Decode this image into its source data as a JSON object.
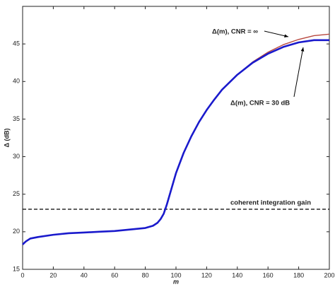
{
  "chart_data": {
    "type": "line",
    "x_label": "m",
    "y_label": "Δ (dB)",
    "x": [
      0,
      2,
      5,
      10,
      20,
      30,
      40,
      50,
      60,
      70,
      80,
      85,
      88,
      90,
      92,
      94,
      96,
      98,
      100,
      105,
      110,
      115,
      120,
      125,
      130,
      140,
      150,
      160,
      170,
      180,
      190,
      200
    ],
    "series": [
      {
        "name": "Δ(m), CNR = ∞",
        "color": "#b8483f",
        "width": 1.4,
        "values": [
          18.3,
          18.7,
          19.1,
          19.3,
          19.6,
          19.8,
          19.9,
          20.0,
          20.1,
          20.3,
          20.5,
          20.8,
          21.2,
          21.7,
          22.4,
          23.6,
          25.0,
          26.4,
          27.8,
          30.5,
          32.7,
          34.6,
          36.2,
          37.6,
          38.9,
          40.9,
          42.6,
          43.9,
          44.9,
          45.6,
          46.1,
          46.3
        ]
      },
      {
        "name": "Δ(m), CNR = 30 dB",
        "color": "#1a1acc",
        "width": 2.6,
        "values": [
          18.3,
          18.7,
          19.1,
          19.3,
          19.6,
          19.8,
          19.9,
          20.0,
          20.1,
          20.3,
          20.5,
          20.8,
          21.2,
          21.7,
          22.4,
          23.6,
          25.0,
          26.4,
          27.8,
          30.5,
          32.7,
          34.6,
          36.2,
          37.6,
          38.9,
          40.9,
          42.5,
          43.7,
          44.6,
          45.2,
          45.5,
          45.5
        ]
      }
    ],
    "hline": {
      "value": 23,
      "label": "coherent integration gain"
    },
    "xlim": [
      0,
      200
    ],
    "xticks": [
      0,
      20,
      40,
      60,
      80,
      100,
      120,
      140,
      160,
      180,
      200
    ],
    "ylim": [
      15,
      50
    ],
    "yticks": [
      15,
      20,
      25,
      30,
      35,
      40,
      45
    ]
  }
}
